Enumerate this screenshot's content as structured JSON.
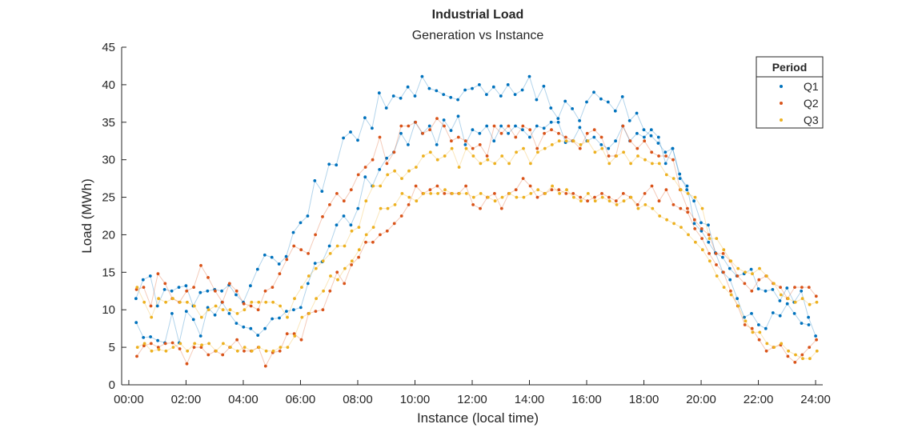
{
  "chart_data": {
    "type": "line",
    "title": "Industrial Load",
    "subtitle": "Generation vs Instance",
    "xlabel": "Instance (local time)",
    "ylabel": "Load (MWh)",
    "xlim": [
      -0.25,
      24.25
    ],
    "ylim": [
      0,
      45
    ],
    "yticks": [
      0,
      5,
      10,
      15,
      20,
      25,
      30,
      35,
      40,
      45
    ],
    "xticks": [
      "00:00",
      "02:00",
      "04:00",
      "06:00",
      "08:00",
      "10:00",
      "12:00",
      "14:00",
      "16:00",
      "18:00",
      "20:00",
      "22:00",
      "24:00"
    ],
    "grid": false,
    "legend": {
      "title": "Period",
      "location": "top-right"
    },
    "x_hours": [
      0.25,
      0.5,
      0.75,
      1.0,
      1.25,
      1.5,
      1.75,
      2.0,
      2.25,
      2.5,
      2.75,
      3.0,
      3.25,
      3.5,
      3.75,
      4.0,
      4.25,
      4.5,
      4.75,
      5.0,
      5.25,
      5.5,
      5.75,
      6.0,
      6.25,
      6.5,
      6.75,
      7.0,
      7.25,
      7.5,
      7.75,
      8.0,
      8.25,
      8.5,
      8.75,
      9.0,
      9.25,
      9.5,
      9.75,
      10.0,
      10.25,
      10.5,
      10.75,
      11.0,
      11.25,
      11.5,
      11.75,
      12.0,
      12.25,
      12.5,
      12.75,
      13.0,
      13.25,
      13.5,
      13.75,
      14.0,
      14.25,
      14.5,
      14.75,
      15.0,
      15.25,
      15.5,
      15.75,
      16.0,
      16.25,
      16.5,
      16.75,
      17.0,
      17.25,
      17.5,
      17.75,
      18.0,
      18.25,
      18.5,
      18.75,
      19.0,
      19.25,
      19.5,
      19.75,
      20.0,
      20.25,
      20.5,
      20.75,
      21.0,
      21.25,
      21.5,
      21.75,
      22.0,
      22.25,
      22.5,
      22.75,
      23.0,
      23.25,
      23.5,
      23.75,
      24.0
    ],
    "series": [
      {
        "name": "Q1",
        "color": "#0072BD",
        "lines": [
          [
            11.5,
            14.0,
            14.5,
            10.5,
            12.7,
            12.5,
            13.0,
            13.2,
            10.5,
            12.3,
            12.5,
            12.7,
            12.5,
            13.3,
            12.0,
            11.0,
            13.2,
            15.4,
            17.3,
            17.0,
            16.1,
            17.1,
            20.3,
            21.6,
            22.5,
            27.2,
            25.8,
            29.4,
            29.3,
            32.9,
            33.7,
            32.6,
            35.6,
            34.2,
            38.9,
            36.9,
            38.5,
            38.2,
            39.7,
            38.5,
            41.1,
            39.5,
            39.2,
            38.7,
            38.3,
            38.0,
            39.3,
            39.5,
            40.0,
            38.7,
            39.7,
            38.5,
            40.0,
            38.7,
            39.3,
            41.1,
            38.0,
            39.8,
            36.9,
            35.5,
            37.8,
            36.8,
            35.2,
            37.7,
            39.0,
            38.1,
            37.7,
            36.5,
            38.4,
            35.2,
            36.2,
            34.0,
            33.2,
            32.2,
            31.0,
            31.5,
            28.1,
            26.0,
            24.5,
            21.6,
            21.3,
            17.6,
            17.0,
            15.5,
            14.5,
            14.8,
            15.4,
            12.8,
            12.5,
            12.7,
            11.2,
            12.9,
            11.0,
            12.5,
            9.0,
            6.5
          ],
          [
            8.3,
            6.3,
            6.4,
            5.9,
            5.6,
            9.5,
            5.6,
            9.8,
            8.7,
            6.5,
            10.3,
            9.3,
            11.0,
            9.5,
            8.2,
            7.7,
            7.5,
            6.6,
            7.5,
            8.8,
            8.9,
            9.8,
            10.0,
            10.3,
            13.5,
            16.2,
            16.4,
            18.5,
            21.3,
            22.5,
            21.3,
            23.5,
            27.7,
            26.5,
            28.7,
            30.2,
            31.0,
            33.5,
            32.0,
            35.0,
            33.5,
            34.5,
            32.0,
            35.3,
            33.9,
            35.8,
            32.0,
            34.0,
            33.5,
            34.5,
            32.5,
            34.5,
            33.5,
            34.5,
            34.0,
            33.0,
            34.5,
            34.2,
            35.0,
            35.0,
            32.3,
            32.5,
            34.3,
            32.5,
            33.0,
            32.0,
            31.5,
            32.5,
            34.5,
            32.5,
            33.5,
            33.0,
            34.0,
            33.0,
            29.5,
            31.5,
            27.5,
            26.5,
            21.5,
            20.5,
            19.0,
            17.5,
            15.0,
            14.0,
            11.5,
            9.0,
            9.5,
            8.0,
            7.5,
            9.6,
            9.2,
            10.8,
            9.5,
            8.2,
            8.0
          ]
        ],
        "line_offsets": [
          0,
          0.01
        ]
      },
      {
        "name": "Q2",
        "color": "#D95319",
        "lines": [
          [
            12.7,
            13.0,
            10.5,
            14.8,
            13.5,
            11.5,
            11.0,
            12.5,
            13.0,
            15.9,
            14.3,
            12.5,
            11.0,
            13.5,
            12.5,
            10.8,
            10.5,
            10.0,
            12.5,
            13.0,
            14.8,
            16.7,
            18.5,
            18.0,
            17.5,
            20.0,
            22.4,
            24.0,
            25.5,
            24.5,
            26.0,
            28.0,
            29.0,
            30.0,
            33.0,
            29.5,
            31.0,
            34.5,
            34.5,
            35.0,
            33.5,
            34.0,
            35.5,
            34.5,
            32.5,
            33.0,
            32.5,
            31.5,
            32.0,
            30.5,
            34.5,
            33.5,
            34.5,
            33.0,
            34.5,
            34.0,
            31.5,
            33.5,
            34.0,
            33.5,
            33.0,
            32.5,
            31.5,
            33.5,
            34.0,
            33.0,
            30.5,
            30.5,
            34.5,
            32.5,
            31.5,
            32.5,
            31.0,
            30.5,
            30.5,
            30.0,
            26.0,
            23.5,
            22.0,
            20.8,
            20.0,
            17.5,
            17.5,
            16.5,
            14.5,
            13.5,
            12.5,
            14.0,
            14.5,
            13.5,
            13.0,
            11.5,
            13.0,
            13.0,
            13.0,
            11.8
          ],
          [
            3.8,
            5.2,
            5.5,
            5.0,
            5.5,
            5.6,
            4.8,
            2.8,
            5.0,
            5.0,
            4.0,
            4.5,
            4.0,
            5.0,
            6.0,
            4.5,
            4.5,
            5.0,
            2.5,
            4.3,
            4.5,
            6.8,
            6.8,
            6.0,
            9.5,
            9.8,
            10.0,
            12.5,
            15.0,
            13.5,
            16.0,
            17.0,
            19.0,
            19.0,
            20.0,
            20.5,
            21.5,
            22.5,
            24.0,
            26.5,
            25.5,
            26.0,
            26.5,
            25.5,
            25.5,
            25.5,
            26.5,
            24.0,
            23.5,
            25.0,
            25.5,
            23.5,
            25.5,
            26.0,
            27.5,
            26.5,
            25.0,
            25.5,
            26.0,
            26.0,
            25.5,
            25.5,
            25.0,
            24.5,
            25.0,
            25.5,
            25.0,
            24.5,
            25.5,
            25.0,
            24.0,
            25.5,
            26.5,
            24.5,
            26.0,
            24.0,
            23.5,
            23.0,
            20.8,
            19.5,
            17.5,
            16.0,
            15.0,
            12.5,
            10.5,
            8.0,
            7.5,
            6.0,
            4.5,
            5.0,
            5.3,
            3.8,
            3.0,
            4.0,
            5.0,
            6.0
          ]
        ],
        "line_offsets": [
          0.02,
          0.03
        ]
      },
      {
        "name": "Q3",
        "color": "#EDB120",
        "lines": [
          [
            13.0,
            11.0,
            9.0,
            11.5,
            11.0,
            11.5,
            11.0,
            11.0,
            10.5,
            9.0,
            10.0,
            10.5,
            10.0,
            10.0,
            9.5,
            10.0,
            11.0,
            11.0,
            11.0,
            11.0,
            10.5,
            9.0,
            11.5,
            13.0,
            14.5,
            15.5,
            16.5,
            17.5,
            18.5,
            18.5,
            20.5,
            21.0,
            24.5,
            26.5,
            26.5,
            28.0,
            28.5,
            27.5,
            28.5,
            29.0,
            30.5,
            31.0,
            30.0,
            30.5,
            31.5,
            29.0,
            31.5,
            30.5,
            29.5,
            30.0,
            29.5,
            30.5,
            29.5,
            31.0,
            31.5,
            29.5,
            31.0,
            31.5,
            32.0,
            32.5,
            32.5,
            32.5,
            32.0,
            32.5,
            31.0,
            31.5,
            29.5,
            30.5,
            31.0,
            29.5,
            30.5,
            30.0,
            29.5,
            29.5,
            28.0,
            27.5,
            26.0,
            25.5,
            25.0,
            23.5,
            19.5,
            19.5,
            18.0,
            16.5,
            15.5,
            15.0,
            14.8,
            15.5,
            14.5,
            13.5,
            12.0,
            11.5,
            11.0,
            11.5,
            10.7,
            11.0
          ],
          [
            5.0,
            5.5,
            4.5,
            4.7,
            4.5,
            5.0,
            5.5,
            4.5,
            5.5,
            5.3,
            5.5,
            4.5,
            5.5,
            5.0,
            4.5,
            5.0,
            4.5,
            5.0,
            4.5,
            4.5,
            5.0,
            5.0,
            6.5,
            9.0,
            9.5,
            11.5,
            12.5,
            14.5,
            14.0,
            15.5,
            16.5,
            18.0,
            20.0,
            21.0,
            23.5,
            23.5,
            24.0,
            25.5,
            25.0,
            24.5,
            25.5,
            25.5,
            25.5,
            26.0,
            25.5,
            25.5,
            25.5,
            25.0,
            25.5,
            25.0,
            24.5,
            25.0,
            25.5,
            25.0,
            25.0,
            25.5,
            26.0,
            25.5,
            26.5,
            25.5,
            26.0,
            25.0,
            24.5,
            25.5,
            24.5,
            25.0,
            24.5,
            24.0,
            24.5,
            25.0,
            23.5,
            24.0,
            23.5,
            22.5,
            22.0,
            21.5,
            21.0,
            20.0,
            19.0,
            18.0,
            16.5,
            14.5,
            13.0,
            12.0,
            10.5,
            8.5,
            7.0,
            7.0,
            5.5,
            5.0,
            5.5,
            4.5,
            4.0,
            3.5,
            3.5,
            4.5
          ]
        ],
        "line_offsets": [
          0.04,
          0.05
        ]
      }
    ]
  }
}
